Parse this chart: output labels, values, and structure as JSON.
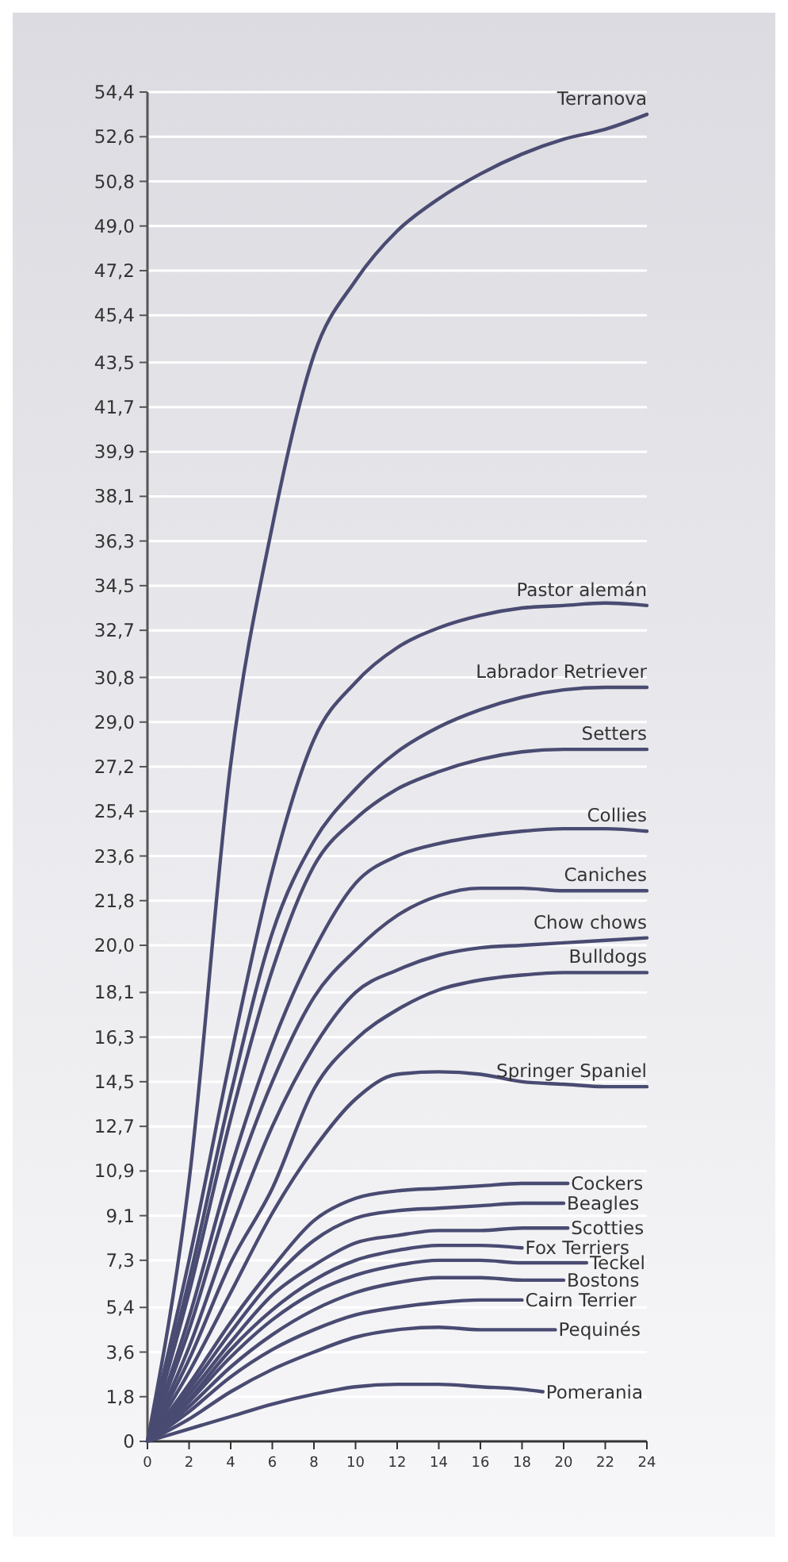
{
  "chart_data": {
    "type": "line",
    "color": "#4a4b72",
    "grid": "y",
    "marker": "none",
    "line_style": "solid",
    "xlim": [
      0,
      24
    ],
    "xticks": [
      0,
      2,
      4,
      6,
      8,
      10,
      12,
      14,
      16,
      18,
      20,
      22,
      24
    ],
    "ylim": [
      0,
      54.4
    ],
    "yticks": [
      0,
      {
        "value": 1.8,
        "label": "1,8"
      },
      {
        "value": 3.6,
        "label": "3,6"
      },
      {
        "value": 5.4,
        "label": "5,4"
      },
      {
        "value": 7.3,
        "label": "7,3"
      },
      {
        "value": 9.1,
        "label": "9,1"
      },
      {
        "value": 10.9,
        "label": "10,9"
      },
      {
        "value": 12.7,
        "label": "12,7"
      },
      {
        "value": 14.5,
        "label": "14,5"
      },
      {
        "value": 16.3,
        "label": "16,3"
      },
      {
        "value": 18.1,
        "label": "18,1"
      },
      {
        "value": 20.0,
        "label": "20,0"
      },
      {
        "value": 21.8,
        "label": "21,8"
      },
      {
        "value": 23.6,
        "label": "23,6"
      },
      {
        "value": 25.4,
        "label": "25,4"
      },
      {
        "value": 27.2,
        "label": "27,2"
      },
      {
        "value": 29.0,
        "label": "29,0"
      },
      {
        "value": 30.8,
        "label": "30,8"
      },
      {
        "value": 32.7,
        "label": "32,7"
      },
      {
        "value": 34.5,
        "label": "34,5"
      },
      {
        "value": 36.3,
        "label": "36,3"
      },
      {
        "value": 38.1,
        "label": "38,1"
      },
      {
        "value": 39.9,
        "label": "39,9"
      },
      {
        "value": 41.7,
        "label": "41,7"
      },
      {
        "value": 43.5,
        "label": "43,5"
      },
      {
        "value": 45.4,
        "label": "45,4"
      },
      {
        "value": 47.2,
        "label": "47,2"
      },
      {
        "value": 49.0,
        "label": "49,0"
      },
      {
        "value": 50.8,
        "label": "50,8"
      },
      {
        "value": 52.6,
        "label": "52,6"
      },
      {
        "value": 54.4,
        "label": "54,4"
      }
    ],
    "x": [
      0,
      2,
      4,
      6,
      8,
      10,
      12,
      14,
      16,
      18,
      20,
      22,
      24
    ],
    "series": [
      {
        "name": "Terranova",
        "values": [
          0,
          10.5,
          27.3,
          36.9,
          43.8,
          46.8,
          48.8,
          50.1,
          51.1,
          51.9,
          52.5,
          52.9,
          53.5
        ]
      },
      {
        "name": "Pastor alemán",
        "values": [
          0,
          7.3,
          15.5,
          23,
          28.3,
          30.6,
          32.0,
          32.8,
          33.3,
          33.6,
          33.7,
          33.8,
          33.7
        ]
      },
      {
        "name": "Labrador Retriever",
        "values": [
          0,
          6.5,
          14,
          20.5,
          24.2,
          26.3,
          27.8,
          28.8,
          29.5,
          30.0,
          30.3,
          30.4,
          30.4
        ]
      },
      {
        "name": "Setters",
        "values": [
          0,
          6,
          13,
          19,
          23.2,
          25.1,
          26.3,
          27.0,
          27.5,
          27.8,
          27.9,
          27.9,
          27.9
        ]
      },
      {
        "name": "Collies",
        "values": [
          0,
          5,
          11,
          16,
          19.8,
          22.5,
          23.6,
          24.1,
          24.4,
          24.6,
          24.7,
          24.7,
          24.6
        ]
      },
      {
        "name": "Caniches",
        "values": [
          0,
          4.5,
          10,
          14.5,
          17.9,
          19.8,
          21.2,
          22.0,
          22.3,
          22.3,
          22.2,
          22.2,
          22.2
        ]
      },
      {
        "name": "Chow chows",
        "values": [
          0,
          3.8,
          8.5,
          12.7,
          15.9,
          18.1,
          19.0,
          19.6,
          19.9,
          20.0,
          20.1,
          20.2,
          20.3
        ]
      },
      {
        "name": "Bulldogs",
        "values": [
          0,
          3.3,
          7.2,
          10.2,
          14.2,
          16.2,
          17.4,
          18.2,
          18.6,
          18.8,
          18.9,
          18.9,
          18.9
        ]
      },
      {
        "name": "Springer Spaniel",
        "values": [
          0,
          2.8,
          6,
          9.2,
          11.8,
          13.8,
          14.8,
          14.9,
          14.8,
          14.5,
          14.4,
          14.3,
          14.3
        ]
      },
      {
        "name": "Cockers",
        "x": [
          0,
          2,
          4,
          6,
          8,
          10,
          12,
          14,
          16,
          18,
          20.2
        ],
        "values": [
          0,
          2.3,
          4.8,
          7.0,
          8.9,
          9.8,
          10.1,
          10.2,
          10.3,
          10.4,
          10.4
        ]
      },
      {
        "name": "Beagles",
        "x": [
          0,
          2,
          4,
          6,
          8,
          10,
          12,
          14,
          16,
          18,
          20
        ],
        "values": [
          0,
          2.1,
          4.4,
          6.5,
          8.1,
          9.0,
          9.3,
          9.4,
          9.5,
          9.6,
          9.6
        ]
      },
      {
        "name": "Scotties",
        "x": [
          0,
          2,
          4,
          6,
          8,
          10,
          12,
          14,
          16,
          18,
          20.2
        ],
        "values": [
          0,
          1.9,
          4,
          5.9,
          7.1,
          8.0,
          8.3,
          8.5,
          8.5,
          8.6,
          8.6
        ]
      },
      {
        "name": "Fox Terriers",
        "x": [
          0,
          2,
          4,
          6,
          8,
          10,
          12,
          14,
          16,
          18
        ],
        "values": [
          0,
          1.7,
          3.7,
          5.3,
          6.5,
          7.3,
          7.7,
          7.9,
          7.9,
          7.8
        ]
      },
      {
        "name": "Teckel",
        "x": [
          0,
          2,
          4,
          6,
          8,
          10,
          12,
          14,
          16,
          18,
          21.1
        ],
        "values": [
          0,
          1.6,
          3.4,
          4.9,
          6.0,
          6.7,
          7.1,
          7.3,
          7.3,
          7.2,
          7.2
        ]
      },
      {
        "name": "Bostons",
        "x": [
          0,
          2,
          4,
          6,
          8,
          10,
          12,
          14,
          16,
          18,
          20
        ],
        "values": [
          0,
          1.4,
          3.0,
          4.3,
          5.3,
          6.0,
          6.4,
          6.6,
          6.6,
          6.5,
          6.5
        ]
      },
      {
        "name": "Cairn Terrier",
        "x": [
          0,
          2,
          4,
          6,
          8,
          10,
          12,
          14,
          16,
          18
        ],
        "values": [
          0,
          1.2,
          2.6,
          3.7,
          4.5,
          5.1,
          5.4,
          5.6,
          5.7,
          5.7
        ]
      },
      {
        "name": "Pequinés",
        "x": [
          0,
          2,
          4,
          6,
          8,
          10,
          12,
          14,
          16,
          18,
          19.6
        ],
        "values": [
          0,
          0.9,
          2.0,
          2.9,
          3.6,
          4.2,
          4.5,
          4.6,
          4.5,
          4.5,
          4.5
        ]
      },
      {
        "name": "Pomerania",
        "x": [
          0,
          2,
          4,
          6,
          8,
          10,
          12,
          14,
          16,
          18,
          19
        ],
        "values": [
          0,
          0.5,
          1.0,
          1.5,
          1.9,
          2.2,
          2.3,
          2.3,
          2.2,
          2.1,
          2.0
        ]
      }
    ]
  }
}
